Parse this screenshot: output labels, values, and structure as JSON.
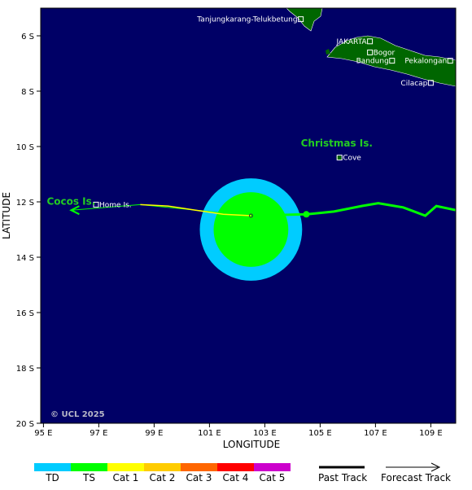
{
  "map": {
    "axes": {
      "xlabel": "LONGITUDE",
      "ylabel": "LATITUDE",
      "x_ticks": [
        "95 E",
        "97 E",
        "99 E",
        "101 E",
        "103 E",
        "105 E",
        "107 E",
        "109 E"
      ],
      "y_ticks": [
        "6 S",
        "8 S",
        "10 S",
        "12 S",
        "14 S",
        "16 S",
        "18 S",
        "20 S"
      ],
      "lon_range": [
        94.9,
        109.9
      ],
      "lat_range": [
        -5.0,
        -20.0
      ]
    },
    "colors": {
      "ocean": "#000066",
      "land": "#006600",
      "past_track": "#ffff00",
      "forecast_track": "#00ff00",
      "wind_34kt": "#00ccff",
      "wind_50kt": "#00ff00"
    },
    "places": [
      {
        "name": "Tanjungkarang-Telukbetung",
        "lon": 104.3,
        "lat": -5.4
      },
      {
        "name": "JAKARTA",
        "lon": 106.8,
        "lat": -6.2
      },
      {
        "name": "Bogor",
        "lon": 106.8,
        "lat": -6.6
      },
      {
        "name": "Pekalongan",
        "lon": 109.7,
        "lat": -6.9
      },
      {
        "name": "Bandung",
        "lon": 107.6,
        "lat": -6.9
      },
      {
        "name": "Cilacap",
        "lon": 109.0,
        "lat": -7.7
      },
      {
        "name": "Cove",
        "lon": 105.7,
        "lat": -10.4
      },
      {
        "name": "Home Is.",
        "lon": 96.9,
        "lat": -12.1
      }
    ],
    "islands": [
      {
        "name": "Christmas Is.",
        "lon": 105.6,
        "lat": -10.0
      },
      {
        "name": "Cocos Is.",
        "lon": 96.0,
        "lat": -12.1
      }
    ],
    "past_track": [
      [
        98.5,
        -12.1
      ],
      [
        99.5,
        -12.15
      ],
      [
        100.5,
        -12.3
      ],
      [
        101.5,
        -12.45
      ],
      [
        102.5,
        -12.5
      ]
    ],
    "forecast_track": [
      [
        102.5,
        -12.5
      ],
      [
        104.5,
        -12.45
      ],
      [
        105.5,
        -12.35
      ],
      [
        106.5,
        -12.15
      ],
      [
        107.1,
        -12.05
      ],
      [
        108.0,
        -12.2
      ],
      [
        108.8,
        -12.5
      ],
      [
        109.2,
        -12.15
      ],
      [
        109.9,
        -12.3
      ]
    ],
    "forecast_track_west": [
      [
        102.5,
        -12.5
      ],
      [
        98.5,
        -12.1
      ],
      [
        96.0,
        -12.3
      ]
    ],
    "storm_center": {
      "lon": 102.5,
      "lat": -12.5
    },
    "forecast_point": {
      "lon": 104.5,
      "lat": -12.45
    },
    "wind_radii": [
      {
        "level": "34kt",
        "center_lon": 102.5,
        "center_lat": -13.0,
        "radius_deg": 1.85
      },
      {
        "level": "50kt",
        "center_lon": 102.5,
        "center_lat": -13.0,
        "radius_deg": 1.35
      }
    ],
    "copyright": "© UCL 2025"
  },
  "legend": {
    "scale": [
      {
        "label": "TD",
        "color": "#00ccff"
      },
      {
        "label": "TS",
        "color": "#00ff00"
      },
      {
        "label": "Cat 1",
        "color": "#ffff00"
      },
      {
        "label": "Cat 2",
        "color": "#ffcc00"
      },
      {
        "label": "Cat 3",
        "color": "#ff6600"
      },
      {
        "label": "Cat 4",
        "color": "#ff0000"
      },
      {
        "label": "Cat 5",
        "color": "#cc00cc"
      }
    ],
    "past_track_label": "Past Track",
    "forecast_track_label": "Forecast Track"
  }
}
